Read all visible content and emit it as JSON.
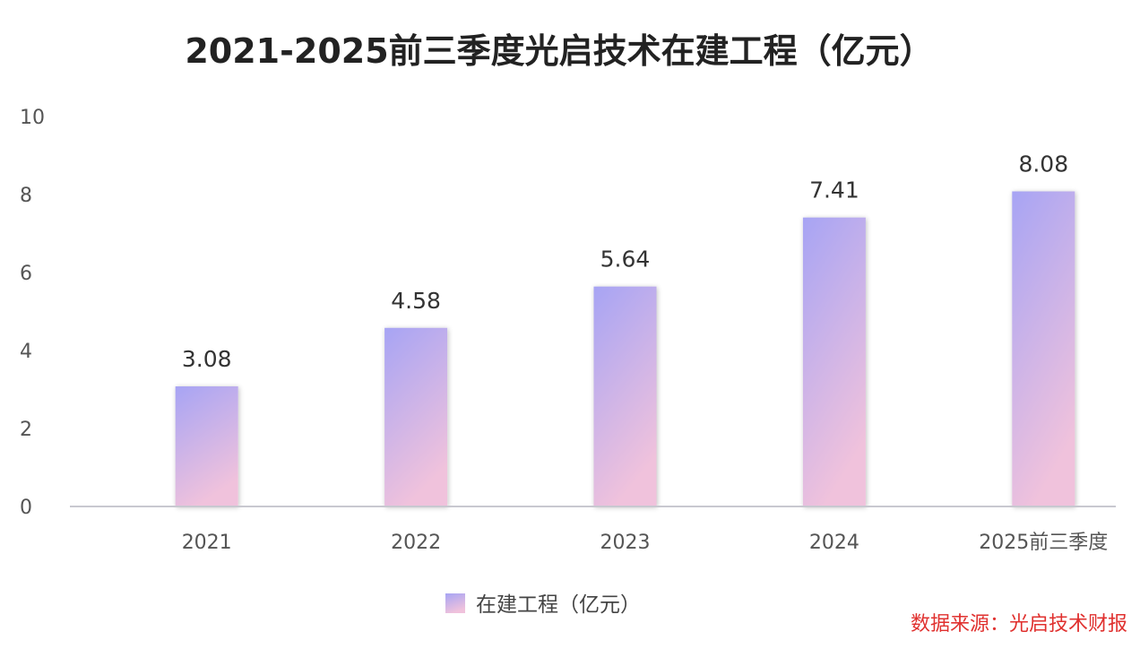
{
  "chart_data": {
    "type": "bar",
    "title": "2021-2025前三季度光启技术在建工程（亿元）",
    "categories": [
      "2021",
      "2022",
      "2023",
      "2024",
      "2025前三季度"
    ],
    "series": [
      {
        "name": "在建工程（亿元）",
        "values": [
          3.08,
          4.58,
          5.64,
          7.41,
          8.08
        ]
      }
    ],
    "data_labels": [
      "3.08",
      "4.58",
      "5.64",
      "7.41",
      "8.08"
    ],
    "y_ticks": [
      "0",
      "2",
      "4",
      "6",
      "8",
      "10"
    ],
    "ylim": [
      0,
      10
    ],
    "grid": false,
    "legend_position": "bottom-center",
    "colors": {
      "bar_top": "#a7a4f4",
      "bar_bottom": "#f0c2dc",
      "axis": "#c8c8d0"
    }
  },
  "source": "数据来源：光启技术财报"
}
